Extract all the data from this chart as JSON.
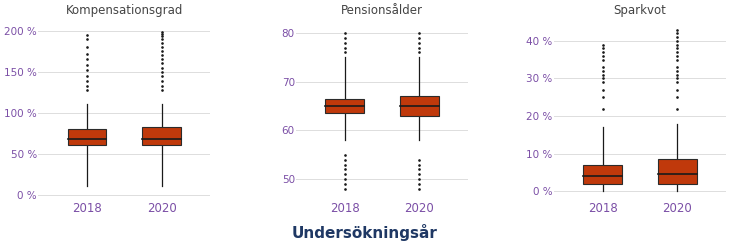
{
  "title_xlabel": "Undersökningsår",
  "subplots": [
    {
      "title": "Kompensationsgrad",
      "years": [
        "2018",
        "2020"
      ],
      "boxes": [
        {
          "q1": 0.6,
          "median": 0.68,
          "q3": 0.8,
          "whislo": 0.1,
          "whishi": 1.1,
          "fliers_high": [
            1.28,
            1.32,
            1.38,
            1.45,
            1.52,
            1.58,
            1.65,
            1.72,
            1.8,
            1.9,
            1.95
          ],
          "fliers_low": []
        },
        {
          "q1": 0.6,
          "median": 0.68,
          "q3": 0.82,
          "whislo": 0.1,
          "whishi": 1.1,
          "fliers_high": [
            1.28,
            1.32,
            1.38,
            1.45,
            1.5,
            1.55,
            1.6,
            1.65,
            1.7,
            1.75,
            1.8,
            1.85,
            1.9,
            1.93,
            1.96,
            1.98
          ],
          "fliers_low": []
        }
      ],
      "ylim": [
        -0.05,
        2.15
      ],
      "yticks": [
        0.0,
        0.5,
        1.0,
        1.5,
        2.0
      ],
      "yticklabels": [
        "0 %",
        "50 %",
        "100 %",
        "150 %",
        "200 %"
      ]
    },
    {
      "title": "Pensionsålder",
      "years": [
        "2018",
        "2020"
      ],
      "boxes": [
        {
          "q1": 63.5,
          "median": 65.0,
          "q3": 66.5,
          "whislo": 58.0,
          "whishi": 75.0,
          "fliers_high": [
            76.0,
            77.0,
            78.0,
            79.0,
            80.0
          ],
          "fliers_low": [
            48.0,
            49.0,
            50.0,
            51.0,
            52.0,
            53.0,
            54.0,
            55.0
          ]
        },
        {
          "q1": 63.0,
          "median": 65.0,
          "q3": 67.0,
          "whislo": 58.0,
          "whishi": 75.0,
          "fliers_high": [
            76.0,
            77.0,
            78.0,
            79.0,
            80.0
          ],
          "fliers_low": [
            48.0,
            49.0,
            50.0,
            51.0,
            52.0,
            53.0,
            54.0
          ]
        }
      ],
      "ylim": [
        46,
        83
      ],
      "yticks": [
        50,
        60,
        70,
        80
      ],
      "yticklabels": [
        "50",
        "60",
        "70",
        "80"
      ]
    },
    {
      "title": "Sparkvot",
      "years": [
        "2018",
        "2020"
      ],
      "boxes": [
        {
          "q1": 0.02,
          "median": 0.04,
          "q3": 0.07,
          "whislo": 0.0,
          "whishi": 0.17,
          "fliers_high": [
            0.22,
            0.25,
            0.27,
            0.29,
            0.3,
            0.31,
            0.32,
            0.33,
            0.35,
            0.36,
            0.37,
            0.38,
            0.39
          ],
          "fliers_low": []
        },
        {
          "q1": 0.02,
          "median": 0.045,
          "q3": 0.085,
          "whislo": 0.0,
          "whishi": 0.18,
          "fliers_high": [
            0.22,
            0.25,
            0.27,
            0.29,
            0.3,
            0.31,
            0.32,
            0.33,
            0.35,
            0.36,
            0.37,
            0.38,
            0.39,
            0.4,
            0.41,
            0.42,
            0.43
          ],
          "fliers_low": []
        }
      ],
      "ylim": [
        -0.02,
        0.46
      ],
      "yticks": [
        0.0,
        0.1,
        0.2,
        0.3,
        0.4
      ],
      "yticklabels": [
        "0 %",
        "10 %",
        "20 %",
        "30 %",
        "40 %"
      ]
    }
  ],
  "box_facecolor": "#C0390B",
  "box_edgecolor": "#2B2B2B",
  "median_color": "#1A1A1A",
  "whisker_color": "#1A1A1A",
  "flier_color": "#1A1A1A",
  "tick_color": "#7B4FA6",
  "title_color": "#444444",
  "xlabel_color": "#1F3864",
  "grid_color": "#DDDDDD",
  "background_color": "#FFFFFF"
}
